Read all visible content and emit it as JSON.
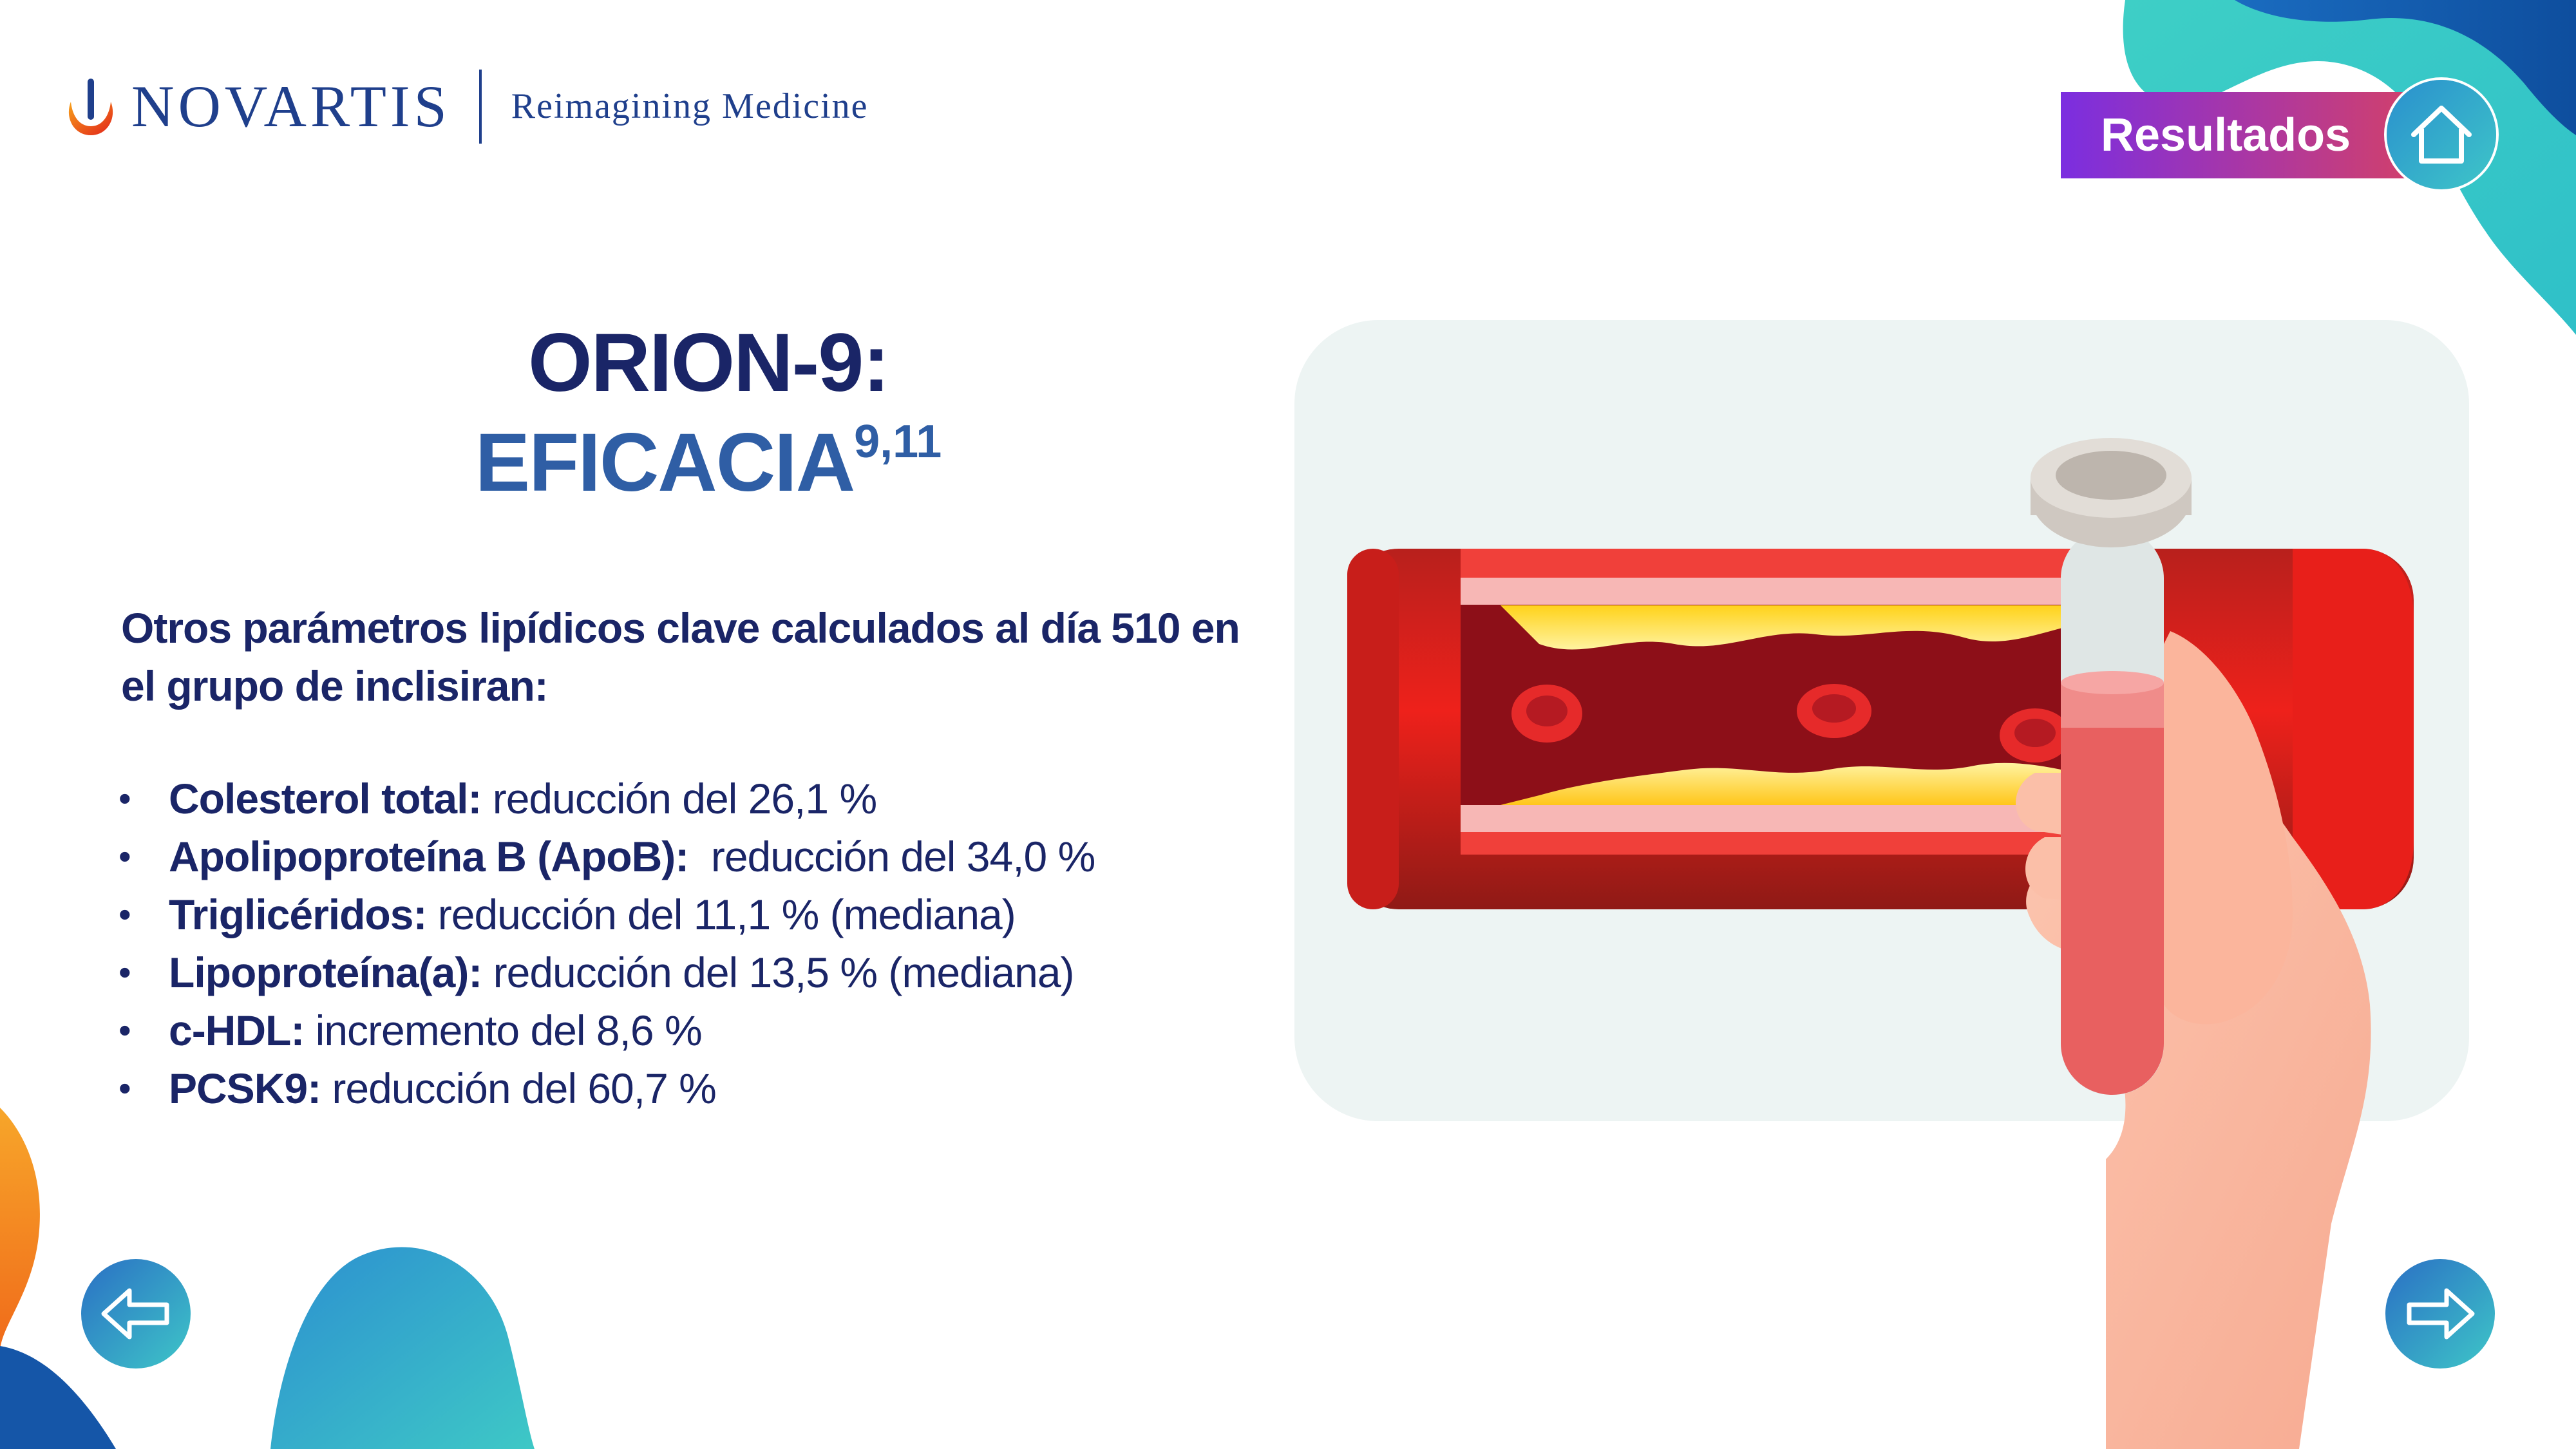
{
  "brand": {
    "name": "NOVARTIS",
    "tagline": "Reimagining Medicine"
  },
  "header": {
    "results_label": "Resultados",
    "home_icon": "home-icon"
  },
  "title": {
    "line1": "ORION-9:",
    "line2": "EFICACIA",
    "superscript": "9,11"
  },
  "intro": "Otros parámetros lipídicos clave calculados al día 510 en el grupo de inclisiran:",
  "items": [
    {
      "label": "Colesterol total:",
      "value": " reducción del 26,1 %"
    },
    {
      "label": "Apolipoproteína B (ApoB):",
      "value": "  reducción del 34,0 %"
    },
    {
      "label": "Triglicéridos:",
      "value": " reducción del 11,1 % (mediana)"
    },
    {
      "label": "Lipoproteína(a):",
      "value": " reducción del 13,5 % (mediana)"
    },
    {
      "label": "c-HDL:",
      "value": " incremento del 8,6 %"
    },
    {
      "label": "PCSK9:",
      "value": " reducción del 60,7 %"
    }
  ],
  "nav": {
    "prev_icon": "arrow-left-icon",
    "next_icon": "arrow-right-icon"
  },
  "colors": {
    "navy": "#1a2567",
    "blue": "#2f5ea5",
    "brand_blue": "#1f3f8c",
    "teal": "#3ec6c8",
    "purple": "#7b2ee0",
    "red": "#e3201b"
  }
}
